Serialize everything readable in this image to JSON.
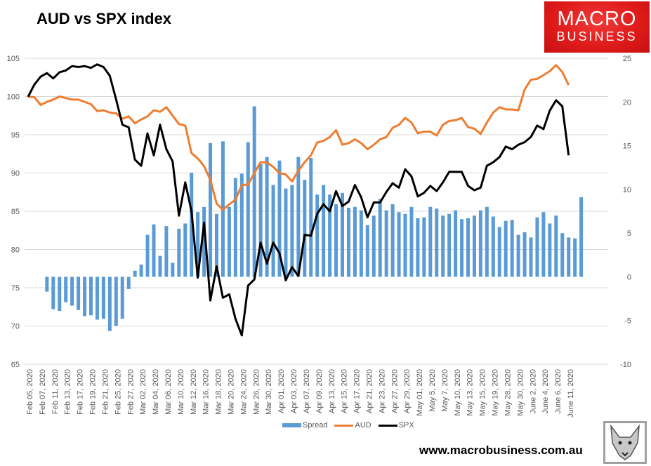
{
  "chart_data": {
    "type": "bar+line",
    "title": "AUD vs SPX index",
    "left_axis": {
      "ylim": [
        65,
        105
      ],
      "ticks": [
        65,
        70,
        75,
        80,
        85,
        90,
        95,
        100,
        105
      ]
    },
    "right_axis": {
      "ylim": [
        -10,
        25
      ],
      "ticks": [
        -10,
        -5,
        0,
        5,
        10,
        15,
        20,
        25
      ]
    },
    "x_tick_labels": [
      "Feb 05, 2020",
      "Feb 07, 2020",
      "Feb 11, 2020",
      "Feb 13, 2020",
      "Feb 17, 2020",
      "Feb 19, 2020",
      "Feb 21, 2020",
      "Feb 25, 2020",
      "Feb 27, 2020",
      "Mar 02, 2020",
      "Mar 04, 2020",
      "Mar 06, 2020",
      "Mar 10, 2020",
      "Mar 12, 2020",
      "Mar 16, 2020",
      "Mar 18, 2020",
      "Mar 20, 2020",
      "Mar 24, 2020",
      "Mar 26, 2020",
      "Mar 30, 2020",
      "Apr 01, 2020",
      "Apr 03, 2020",
      "Apr 07, 2020",
      "Apr 09, 2020",
      "Apr 13, 2020",
      "Apr 15, 2020",
      "Apr 17, 2020",
      "Apr 21, 2020",
      "Apr 23, 2020",
      "Apr 27, 2020",
      "Apr 29, 2020",
      "May 01, 2020",
      "May 5, 2020",
      "May 7, 2020",
      "May 10, 2020",
      "May 13, 2020",
      "May 15, 2020",
      "May 19, 2020",
      "May 28, 2020",
      "May 30, 2020",
      "June 2, 2020",
      "June 4, 2020",
      "June 6, 2020",
      "June 11, 2020"
    ],
    "series": [
      {
        "name": "Spread",
        "type": "bar",
        "axis": "right",
        "color": "#5b9bd5",
        "values": [
          null,
          null,
          null,
          -1.7,
          -3.7,
          -3.9,
          -2.9,
          -3.3,
          -3.8,
          -4.5,
          -4.4,
          -4.9,
          -4.8,
          -6.2,
          -5.6,
          -4.8,
          -1.4,
          0.7,
          1.4,
          4.8,
          6.0,
          2.4,
          5.8,
          1.6,
          5.5,
          6.1,
          11.9,
          7.4,
          8.0,
          15.3,
          7.2,
          15.5,
          8.0,
          11.3,
          11.8,
          15.4,
          19.5,
          12.9,
          13.7,
          10.5,
          13.3,
          10.1,
          10.5,
          13.7,
          11.1,
          13.6,
          9.4,
          10.5,
          9.4,
          8.3,
          9.6,
          7.9,
          8.0,
          7.6,
          5.9,
          7.0,
          8.9,
          7.6,
          8.3,
          7.4,
          7.2,
          8.0,
          6.7,
          6.8,
          8.0,
          7.8,
          7.0,
          7.2,
          7.6,
          6.6,
          6.7,
          7.0,
          7.6,
          8.0,
          6.9,
          5.7,
          6.4,
          6.5,
          4.8,
          5.1,
          4.5,
          6.8,
          7.4,
          6.1,
          7.0,
          5.0,
          4.5,
          4.4,
          9.1
        ]
      },
      {
        "name": "AUD",
        "type": "line",
        "axis": "left",
        "color": "#ed7d31",
        "values": [
          100.0,
          99.9,
          98.9,
          99.3,
          99.6,
          100.0,
          99.8,
          99.6,
          99.6,
          99.3,
          99.0,
          98.1,
          98.2,
          97.9,
          97.8,
          97.1,
          97.4,
          96.5,
          97.0,
          97.4,
          98.2,
          98.0,
          98.6,
          97.5,
          96.4,
          96.2,
          92.6,
          91.9,
          90.9,
          89.1,
          86.0,
          85.2,
          85.9,
          86.5,
          88.4,
          88.5,
          90.0,
          91.4,
          91.4,
          90.8,
          90.0,
          89.8,
          88.9,
          90.3,
          91.4,
          92.3,
          94.0,
          94.2,
          94.7,
          95.6,
          93.7,
          93.9,
          94.4,
          93.9,
          93.1,
          93.7,
          94.4,
          94.7,
          95.9,
          96.3,
          97.2,
          96.6,
          95.2,
          95.4,
          95.4,
          94.9,
          96.3,
          96.8,
          96.9,
          97.2,
          96.0,
          95.8,
          95.1,
          96.6,
          97.9,
          98.6,
          98.3,
          98.3,
          98.2,
          100.9,
          102.2,
          102.3,
          102.8,
          103.3,
          104.1,
          103.2,
          101.5,
          null,
          null
        ]
      },
      {
        "name": "SPX",
        "type": "line",
        "axis": "right",
        "color": "#000000",
        "values": [
          20.6,
          22.0,
          22.9,
          23.3,
          22.7,
          23.4,
          23.6,
          24.1,
          24.0,
          24.1,
          23.9,
          24.3,
          24.0,
          23.0,
          20.3,
          17.4,
          17.1,
          13.4,
          12.7,
          16.4,
          13.9,
          17.4,
          14.6,
          13.2,
          7.0,
          10.8,
          7.5,
          -0.1,
          6.2,
          -2.7,
          1.2,
          -2.4,
          -2.0,
          -4.8,
          -6.7,
          -1.0,
          -0.3,
          3.9,
          1.5,
          3.9,
          2.7,
          -0.4,
          1.1,
          0.1,
          4.8,
          4.7,
          7.2,
          8.3,
          7.5,
          9.8,
          8.1,
          8.6,
          10.5,
          9.1,
          6.8,
          8.5,
          8.5,
          9.7,
          10.7,
          10.2,
          12.3,
          11.5,
          9.2,
          9.6,
          10.4,
          9.8,
          10.8,
          12.0,
          12.0,
          12.0,
          10.4,
          9.9,
          10.2,
          12.7,
          13.1,
          13.7,
          14.9,
          14.6,
          15.1,
          15.4,
          16.0,
          17.3,
          16.9,
          19.0,
          20.2,
          19.5,
          13.9,
          null,
          null
        ]
      }
    ],
    "legend": {
      "placement": "bottom",
      "entries": [
        "Spread",
        "AUD",
        "SPX"
      ]
    },
    "grid": true
  },
  "branding": {
    "logo_line1": "MACRO",
    "logo_line2": "BUSINESS",
    "website": "www.macrobusiness.com.au"
  }
}
